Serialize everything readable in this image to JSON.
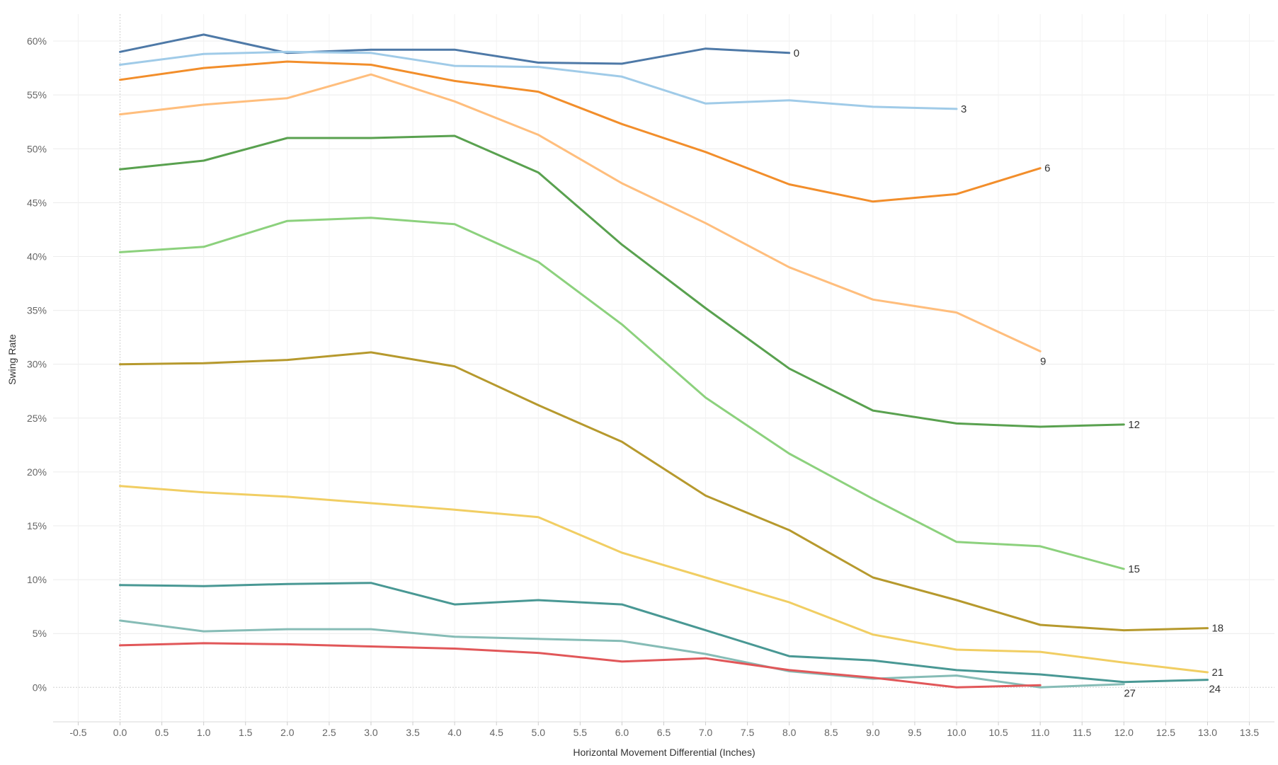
{
  "chart_data": {
    "type": "line",
    "title": "",
    "xlabel": "Horizontal Movement Differential (Inches)",
    "ylabel": "Swing Rate",
    "xlim": [
      -0.8,
      13.8
    ],
    "ylim": [
      -3.2,
      62.5
    ],
    "x_ticks": [
      "-0.5",
      "0.0",
      "0.5",
      "1.0",
      "1.5",
      "2.0",
      "2.5",
      "3.0",
      "3.5",
      "4.0",
      "4.5",
      "5.0",
      "5.5",
      "6.0",
      "6.5",
      "7.0",
      "7.5",
      "8.0",
      "8.5",
      "9.0",
      "9.5",
      "10.0",
      "10.5",
      "11.0",
      "11.5",
      "12.0",
      "12.5",
      "13.0",
      "13.5"
    ],
    "x_tick_values": [
      -0.5,
      0,
      0.5,
      1,
      1.5,
      2,
      2.5,
      3,
      3.5,
      4,
      4.5,
      5,
      5.5,
      6,
      6.5,
      7,
      7.5,
      8,
      8.5,
      9,
      9.5,
      10,
      10.5,
      11,
      11.5,
      12,
      12.5,
      13,
      13.5
    ],
    "y_ticks": [
      "0%",
      "5%",
      "10%",
      "15%",
      "20%",
      "25%",
      "30%",
      "35%",
      "40%",
      "45%",
      "50%",
      "55%",
      "60%"
    ],
    "y_tick_values": [
      0,
      5,
      10,
      15,
      20,
      25,
      30,
      35,
      40,
      45,
      50,
      55,
      60
    ],
    "grid": true,
    "series": [
      {
        "name": "0",
        "color": "#4e79a7",
        "x": [
          0,
          1,
          2,
          3,
          4,
          5,
          6,
          7,
          8
        ],
        "values": [
          59.0,
          60.6,
          58.9,
          59.2,
          59.2,
          58.0,
          57.9,
          59.3,
          58.9
        ]
      },
      {
        "name": "3",
        "color": "#a0cbe8",
        "x": [
          0,
          1,
          2,
          3,
          4,
          5,
          6,
          7,
          8,
          9,
          10
        ],
        "values": [
          57.8,
          58.8,
          59.0,
          58.9,
          57.7,
          57.6,
          56.7,
          54.2,
          54.5,
          53.9,
          53.7
        ]
      },
      {
        "name": "6",
        "color": "#f28e2b",
        "x": [
          0,
          1,
          2,
          3,
          4,
          5,
          6,
          7,
          8,
          9,
          10,
          11
        ],
        "values": [
          56.4,
          57.5,
          58.1,
          57.8,
          56.3,
          55.3,
          52.3,
          49.7,
          46.7,
          45.1,
          45.8,
          48.2
        ]
      },
      {
        "name": "9",
        "color": "#ffbe7d",
        "x": [
          0,
          1,
          2,
          3,
          4,
          5,
          6,
          7,
          8,
          9,
          10,
          11
        ],
        "values": [
          53.2,
          54.1,
          54.7,
          56.9,
          54.4,
          51.3,
          46.8,
          43.1,
          39.0,
          36.0,
          34.8,
          31.2
        ]
      },
      {
        "name": "12",
        "color": "#59a14f",
        "x": [
          0,
          1,
          2,
          3,
          4,
          5,
          6,
          7,
          8,
          9,
          10,
          11,
          12
        ],
        "values": [
          48.1,
          48.9,
          51.0,
          51.0,
          51.2,
          47.8,
          41.1,
          35.2,
          29.6,
          25.7,
          24.5,
          24.2,
          24.4
        ]
      },
      {
        "name": "15",
        "color": "#8cd17d",
        "x": [
          0,
          1,
          2,
          3,
          4,
          5,
          6,
          7,
          8,
          9,
          10,
          11,
          12
        ],
        "values": [
          40.4,
          40.9,
          43.3,
          43.6,
          43.0,
          39.5,
          33.7,
          26.9,
          21.7,
          17.5,
          13.5,
          13.1,
          11.0
        ]
      },
      {
        "name": "18",
        "color": "#b6992d",
        "x": [
          0,
          1,
          2,
          3,
          4,
          5,
          6,
          7,
          8,
          9,
          10,
          11,
          12,
          13
        ],
        "values": [
          30.0,
          30.1,
          30.4,
          31.1,
          29.8,
          26.2,
          22.8,
          17.8,
          14.6,
          10.2,
          8.1,
          5.8,
          5.3,
          5.5
        ]
      },
      {
        "name": "21",
        "color": "#f1ce63",
        "x": [
          0,
          1,
          2,
          3,
          4,
          5,
          6,
          7,
          8,
          9,
          10,
          11,
          12,
          13
        ],
        "values": [
          18.7,
          18.1,
          17.7,
          17.1,
          16.5,
          15.8,
          12.5,
          10.2,
          7.9,
          4.9,
          3.5,
          3.3,
          2.3,
          1.4
        ]
      },
      {
        "name": "24",
        "color": "#499894",
        "x": [
          0,
          1,
          2,
          3,
          4,
          5,
          6,
          7,
          8,
          9,
          10,
          11,
          12,
          13
        ],
        "values": [
          9.5,
          9.4,
          9.6,
          9.7,
          7.7,
          8.1,
          7.7,
          5.3,
          2.9,
          2.5,
          1.6,
          1.2,
          0.5,
          0.7
        ]
      },
      {
        "name": "27",
        "color": "#86bcb6",
        "x": [
          0,
          1,
          2,
          3,
          4,
          5,
          6,
          7,
          8,
          9,
          10,
          11,
          12
        ],
        "values": [
          6.2,
          5.2,
          5.4,
          5.4,
          4.7,
          4.5,
          4.3,
          3.1,
          1.5,
          0.8,
          1.1,
          0.0,
          0.3
        ]
      },
      {
        "name": "",
        "color": "#e15759",
        "x": [
          0,
          1,
          2,
          3,
          4,
          5,
          6,
          7,
          8,
          9,
          10,
          11
        ],
        "values": [
          3.9,
          4.1,
          4.0,
          3.8,
          3.6,
          3.2,
          2.4,
          2.7,
          1.6,
          0.9,
          0.0,
          0.2
        ]
      }
    ]
  }
}
